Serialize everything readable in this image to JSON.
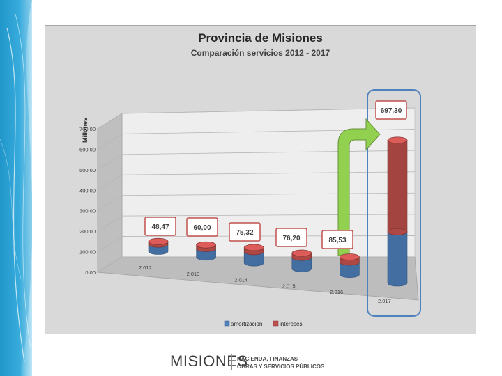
{
  "chart_data": {
    "type": "bar",
    "title": "Provincia de Misiones",
    "subtitle": "Comparación  servicios 2012 - 2017",
    "ylabel": "Millones",
    "ylim": [
      0,
      700
    ],
    "yticks": [
      "0,00",
      "100,00",
      "200,00",
      "300,00",
      "400,00",
      "500,00",
      "600,00",
      "700,00"
    ],
    "categories": [
      "2.012",
      "2.013",
      "2.014",
      "2.015",
      "2.016",
      "2.017"
    ],
    "series": [
      {
        "name": "amortizacion",
        "color": "#4f81bd",
        "values": [
          35,
          42,
          55,
          55,
          60,
          250
        ]
      },
      {
        "name": "intereses",
        "color": "#c0504d",
        "values": [
          13.47,
          18,
          20.32,
          21.2,
          25.53,
          447.3
        ]
      }
    ],
    "totals_labels": [
      "48,47",
      "60,00",
      "75,32",
      "76,20",
      "85,53",
      "697,30"
    ],
    "stacked": true,
    "three_d": true,
    "legend_position": "bottom",
    "grid": true,
    "highlight": {
      "category": "2.017",
      "arrow_color": "#92d050",
      "frame_color": "#4f81bd"
    }
  },
  "footer": {
    "logo_text": "MISIONES",
    "org_line1": "HACIENDA, FINANZAS",
    "org_line2": "OBRAS Y SERVICIOS PÚBLICOS"
  }
}
